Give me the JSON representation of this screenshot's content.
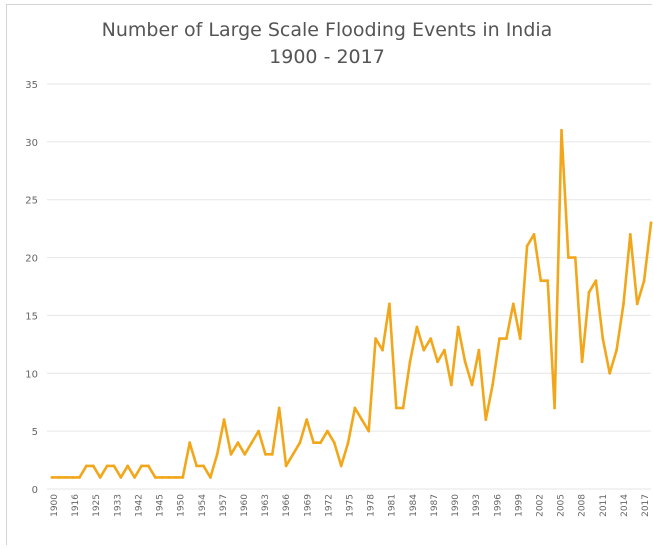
{
  "chart_data": {
    "type": "line",
    "title": "Number of Large Scale Flooding Events in India",
    "subtitle": "1900 - 2017",
    "xlabel": "",
    "ylabel": "",
    "ylim": [
      0,
      35
    ],
    "yticks": [
      0,
      5,
      10,
      15,
      20,
      25,
      30,
      35
    ],
    "grid": "horizontal",
    "legend": "none",
    "x_tick_labels": [
      "1900",
      "1916",
      "1925",
      "1933",
      "1942",
      "1945",
      "1950",
      "1954",
      "1957",
      "1960",
      "1963",
      "1966",
      "1969",
      "1972",
      "1975",
      "1978",
      "1981",
      "1984",
      "1987",
      "1990",
      "1993",
      "1996",
      "1999",
      "2002",
      "2005",
      "2008",
      "2011",
      "2014",
      "2017"
    ],
    "series": [
      {
        "color": "#f2a71b",
        "values": [
          1,
          1,
          1,
          1,
          1,
          2,
          2,
          1,
          2,
          2,
          1,
          2,
          1,
          2,
          2,
          1,
          1,
          1,
          1,
          1,
          4,
          2,
          2,
          1,
          3,
          6,
          3,
          4,
          3,
          4,
          5,
          3,
          3,
          7,
          2,
          3,
          4,
          6,
          4,
          4,
          5,
          4,
          2,
          4,
          7,
          6,
          5,
          13,
          12,
          16,
          7,
          7,
          11,
          14,
          12,
          13,
          11,
          12,
          9,
          14,
          11,
          9,
          12,
          6,
          9,
          13,
          13,
          16,
          13,
          21,
          22,
          18,
          18,
          7,
          31,
          20,
          20,
          11,
          17,
          18,
          13,
          10,
          12,
          16,
          22,
          16,
          18,
          23
        ]
      }
    ]
  }
}
